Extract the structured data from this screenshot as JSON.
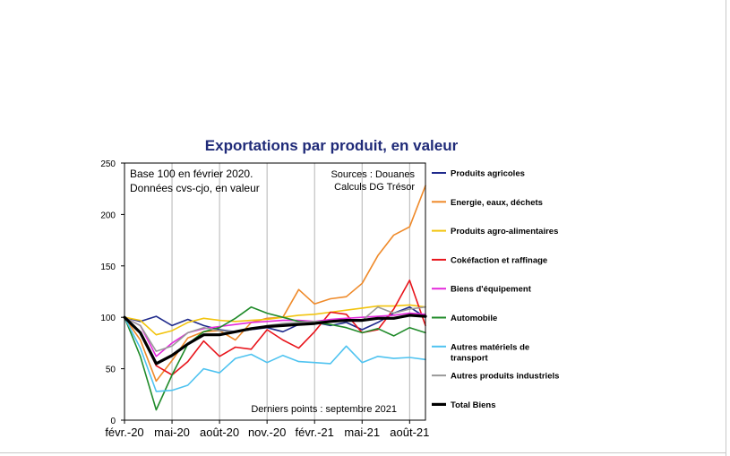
{
  "chart_data": {
    "type": "line",
    "title": "Exportations par produit, en valeur",
    "notes": {
      "base": "Base 100 en février 2020.",
      "data_type": "Données cvs-cjo, en valeur",
      "sources": "Sources : Douanes",
      "calculs": "Calculs DG Trésor",
      "last_points": "Derniers points : septembre 2021"
    },
    "x": [
      "févr.-20",
      "mars-20",
      "avr.-20",
      "mai-20",
      "juin-20",
      "juil.-20",
      "août-20",
      "sept.-20",
      "oct.-20",
      "nov.-20",
      "déc.-20",
      "janv.-21",
      "févr.-21",
      "mars-21",
      "avr.-21",
      "mai-21",
      "juin-21",
      "juil.-21",
      "août-21",
      "sept.-21"
    ],
    "x_tick_labels": [
      "févr.-20",
      "mai-20",
      "août-20",
      "nov.-20",
      "févr.-21",
      "mai-21",
      "août-21"
    ],
    "y_ticks": [
      0,
      50,
      100,
      150,
      200,
      250
    ],
    "ylim": [
      0,
      250
    ],
    "grid": "vertical",
    "legend_position": "right",
    "series": [
      {
        "name": "Produits agricoles",
        "color": "#1f2a8c",
        "width": 1.6,
        "values": [
          100,
          96,
          101,
          92,
          98,
          92,
          88,
          86,
          88,
          90,
          86,
          93,
          95,
          92,
          95,
          88,
          95,
          104,
          110,
          100
        ]
      },
      {
        "name": "Energie, eaux, déchets",
        "color": "#ef8a2a",
        "width": 1.6,
        "values": [
          100,
          78,
          38,
          58,
          80,
          86,
          87,
          78,
          95,
          99,
          100,
          127,
          113,
          118,
          120,
          133,
          160,
          180,
          188,
          228
        ]
      },
      {
        "name": "Produits agro-alimentaires",
        "color": "#f2c40f",
        "width": 1.6,
        "values": [
          100,
          97,
          83,
          87,
          95,
          99,
          97,
          96,
          97,
          98,
          100,
          102,
          103,
          105,
          107,
          109,
          111,
          111,
          112,
          110
        ]
      },
      {
        "name": "Cokéfaction et raffinage",
        "color": "#e8141b",
        "width": 1.6,
        "values": [
          100,
          85,
          53,
          44,
          57,
          77,
          62,
          71,
          69,
          88,
          78,
          70,
          86,
          105,
          103,
          85,
          88,
          108,
          136,
          92
        ]
      },
      {
        "name": "Biens d'équipement",
        "color": "#e42adc",
        "width": 1.6,
        "values": [
          100,
          92,
          62,
          75,
          85,
          89,
          91,
          93,
          95,
          96,
          97,
          97,
          96,
          98,
          99,
          100,
          101,
          102,
          104,
          103
        ]
      },
      {
        "name": "Automobile",
        "color": "#208b2a",
        "width": 1.6,
        "values": [
          100,
          62,
          10,
          44,
          74,
          86,
          90,
          99,
          110,
          104,
          100,
          96,
          95,
          93,
          90,
          85,
          89,
          82,
          90,
          85
        ]
      },
      {
        "name": "Autres matériels de transport",
        "color": "#4fc3f0",
        "width": 1.6,
        "values": [
          100,
          70,
          28,
          29,
          34,
          50,
          46,
          60,
          64,
          56,
          63,
          57,
          56,
          55,
          72,
          56,
          62,
          60,
          61,
          59
        ]
      },
      {
        "name": "Autres produits industriels",
        "color": "#999999",
        "width": 1.6,
        "values": [
          100,
          92,
          67,
          72,
          85,
          90,
          87,
          86,
          88,
          92,
          94,
          95,
          96,
          96,
          97,
          97,
          110,
          104,
          108,
          110
        ]
      },
      {
        "name": "Total Biens",
        "color": "#000000",
        "width": 3.2,
        "values": [
          100,
          85,
          55,
          63,
          74,
          83,
          83,
          86,
          89,
          91,
          92,
          93,
          94,
          96,
          97,
          97,
          99,
          99,
          102,
          101
        ]
      }
    ]
  }
}
